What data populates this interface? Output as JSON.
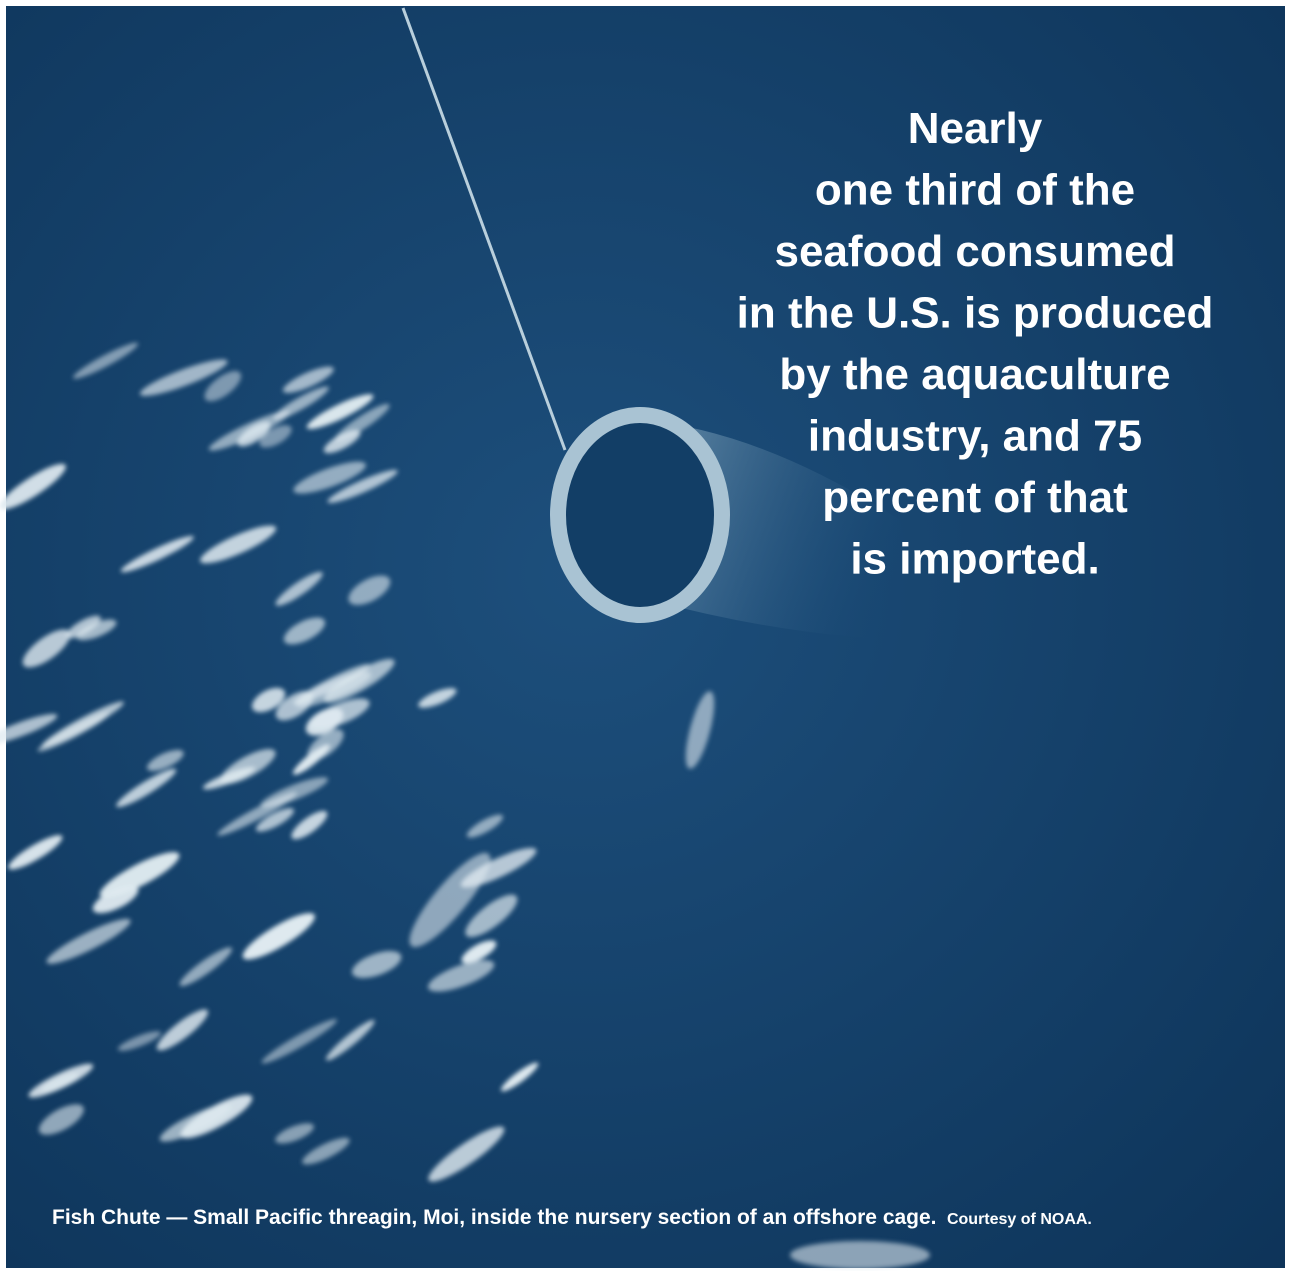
{
  "quote": {
    "lines": [
      "Nearly",
      "one third of the",
      "seafood consumed",
      "in the U.S. is produced",
      "by the aquaculture",
      "industry, and 75",
      "percent of that",
      "is imported."
    ]
  },
  "caption": {
    "text": "Fish Chute — Small Pacific threagin, Moi, inside the nursery section of an offshore cage.",
    "credit": "Courtesy of NOAA."
  }
}
